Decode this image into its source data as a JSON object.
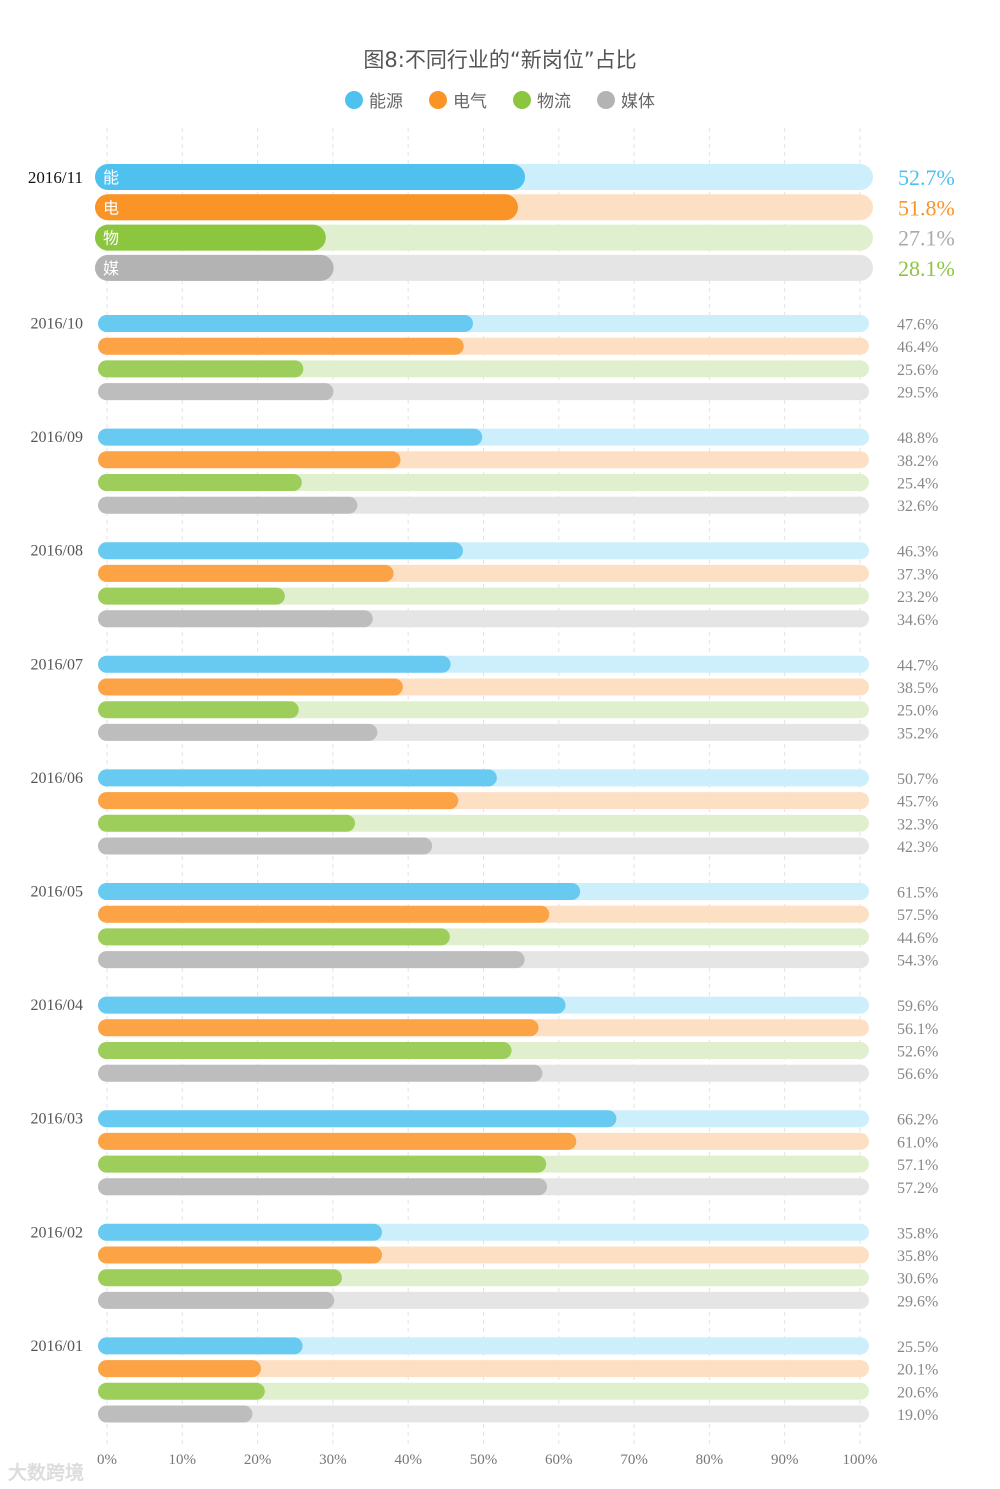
{
  "chart_data": {
    "type": "bar",
    "title": "图8:不同行业的“新岗位”占比",
    "legend_position": "top",
    "grid": true,
    "xlim": [
      0,
      100
    ],
    "x_ticks": [
      "0%",
      "10%",
      "20%",
      "30%",
      "40%",
      "50%",
      "60%",
      "70%",
      "80%",
      "90%",
      "100%"
    ],
    "categories": [
      "2016/11",
      "2016/10",
      "2016/09",
      "2016/08",
      "2016/07",
      "2016/06",
      "2016/05",
      "2016/04",
      "2016/03",
      "2016/02",
      "2016/01"
    ],
    "series": [
      {
        "name": "能源",
        "short": "能",
        "color": "#4fc1ef",
        "track": "#cdeefb",
        "values": [
          52.7,
          47.6,
          48.8,
          46.3,
          44.7,
          50.7,
          61.5,
          59.6,
          66.2,
          35.8,
          25.5
        ]
      },
      {
        "name": "电气",
        "short": "电",
        "color": "#fa9426",
        "track": "#fde0c4",
        "values": [
          51.8,
          46.4,
          38.2,
          37.3,
          38.5,
          45.7,
          57.5,
          56.1,
          61.0,
          35.8,
          20.1
        ]
      },
      {
        "name": "物流",
        "short": "物",
        "color": "#8cc63f",
        "track": "#e0f0cf",
        "values": [
          27.1,
          25.6,
          25.4,
          23.2,
          25.0,
          32.3,
          44.6,
          52.6,
          57.1,
          30.6,
          20.6
        ]
      },
      {
        "name": "媒体",
        "short": "媒",
        "color": "#b3b3b3",
        "track": "#e5e5e5",
        "values": [
          28.1,
          29.5,
          32.6,
          34.6,
          35.2,
          42.3,
          54.3,
          56.6,
          57.2,
          29.6,
          19.0
        ]
      }
    ],
    "highlight_label_colors": [
      "#4fc1ef",
      "#fa9426",
      "#aaaaaa",
      "#8cc63f"
    ]
  },
  "watermark": "大数跨境"
}
